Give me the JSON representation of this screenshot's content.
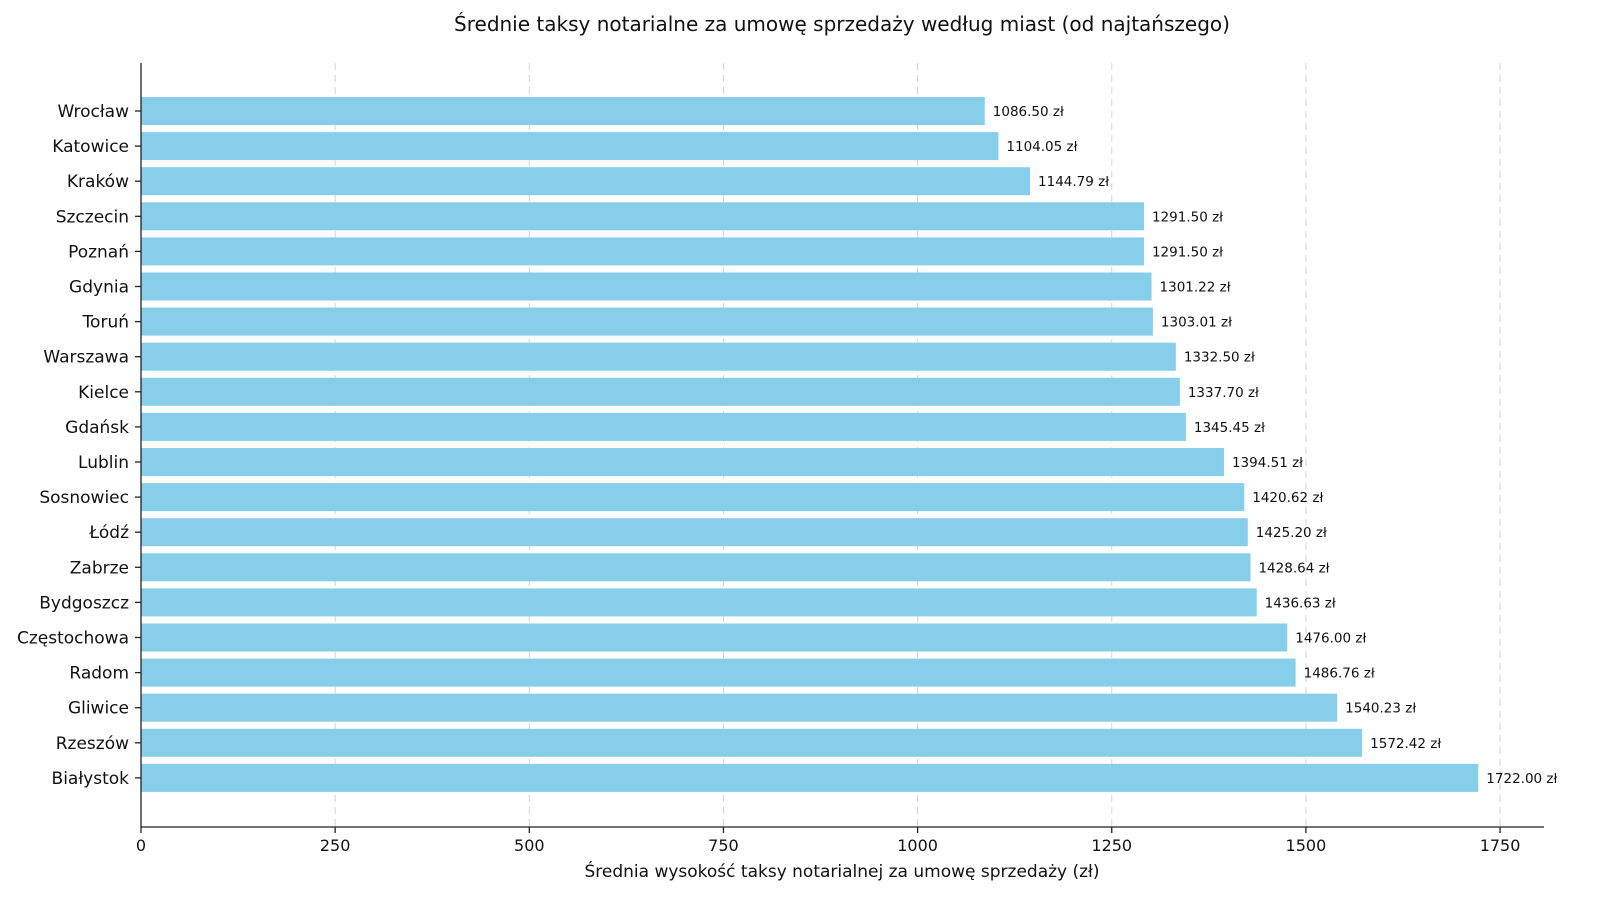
{
  "chart_data": {
    "type": "bar",
    "orientation": "horizontal",
    "title": "Średnie taksy notarialne za umowę sprzedaży według miast (od najtańszego)",
    "xlabel": "Średnia wysokość taksy notarialnej za umowę sprzedaży (zł)",
    "ylabel": "",
    "xlim": [
      0,
      1810
    ],
    "xticks": [
      0,
      250,
      500,
      750,
      1000,
      1250,
      1500,
      1750
    ],
    "grid": "vertical dashed",
    "value_suffix": " zł",
    "bar_color": "#87CEEB",
    "categories": [
      "Wrocław",
      "Katowice",
      "Kraków",
      "Szczecin",
      "Poznań",
      "Gdynia",
      "Toruń",
      "Warszawa",
      "Kielce",
      "Gdańsk",
      "Lublin",
      "Sosnowiec",
      "Łódź",
      "Zabrze",
      "Bydgoszcz",
      "Częstochowa",
      "Radom",
      "Gliwice",
      "Rzeszów",
      "Białystok"
    ],
    "values": [
      1086.5,
      1104.05,
      1144.79,
      1291.5,
      1291.5,
      1301.22,
      1303.01,
      1332.5,
      1337.7,
      1345.45,
      1394.51,
      1420.62,
      1425.2,
      1428.64,
      1436.63,
      1476.0,
      1486.76,
      1540.23,
      1572.42,
      1722.0
    ],
    "data_labels": [
      "1086.50 zł",
      "1104.05 zł",
      "1144.79 zł",
      "1291.50 zł",
      "1291.50 zł",
      "1301.22 zł",
      "1303.01 zł",
      "1332.50 zł",
      "1337.70 zł",
      "1345.45 zł",
      "1394.51 zł",
      "1420.62 zł",
      "1425.20 zł",
      "1428.64 zł",
      "1436.63 zł",
      "1476.00 zł",
      "1486.76 zł",
      "1540.23 zł",
      "1572.42 zł",
      "1722.00 zł"
    ]
  }
}
